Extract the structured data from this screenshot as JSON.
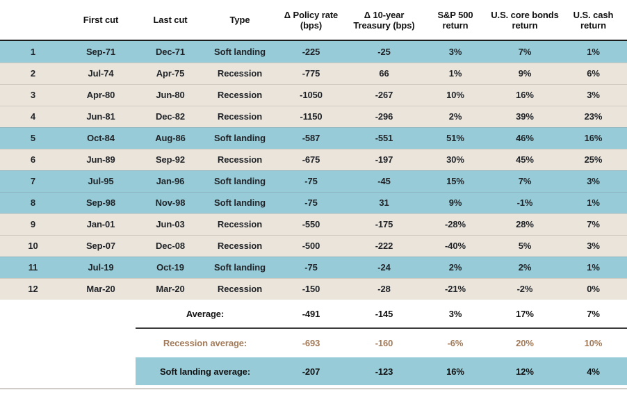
{
  "colors": {
    "soft_landing_row": "#97CBD8",
    "recession_row": "#EBE4DB",
    "recession_summary_text": "#A27A58",
    "body_text": "#1F2327",
    "header_rule": "#1C1C1C",
    "summary_rule": "#3B3B3B",
    "bottom_rule": "#D0CDC8"
  },
  "chart_data": {
    "type": "table",
    "columns": [
      "",
      "First cut",
      "Last cut",
      "Type",
      "Δ Policy rate (bps)",
      "Δ 10-year Treasury (bps)",
      "S&P 500 return",
      "U.S. core bonds return",
      "U.S. cash return"
    ],
    "header_lines": [
      [
        ""
      ],
      [
        "First cut"
      ],
      [
        "Last cut"
      ],
      [
        "Type"
      ],
      [
        "Δ Policy rate",
        "(bps)"
      ],
      [
        "Δ 10-year",
        "Treasury (bps)"
      ],
      [
        "S&P 500",
        "return"
      ],
      [
        "U.S. core bonds",
        "return"
      ],
      [
        "U.S. cash",
        "return"
      ]
    ],
    "rows": [
      [
        "1",
        "Sep-71",
        "Dec-71",
        "Soft landing",
        "-225",
        "-25",
        "3%",
        "7%",
        "1%"
      ],
      [
        "2",
        "Jul-74",
        "Apr-75",
        "Recession",
        "-775",
        "66",
        "1%",
        "9%",
        "6%"
      ],
      [
        "3",
        "Apr-80",
        "Jun-80",
        "Recession",
        "-1050",
        "-267",
        "10%",
        "16%",
        "3%"
      ],
      [
        "4",
        "Jun-81",
        "Dec-82",
        "Recession",
        "-1150",
        "-296",
        "2%",
        "39%",
        "23%"
      ],
      [
        "5",
        "Oct-84",
        "Aug-86",
        "Soft landing",
        "-587",
        "-551",
        "51%",
        "46%",
        "16%"
      ],
      [
        "6",
        "Jun-89",
        "Sep-92",
        "Recession",
        "-675",
        "-197",
        "30%",
        "45%",
        "25%"
      ],
      [
        "7",
        "Jul-95",
        "Jan-96",
        "Soft landing",
        "-75",
        "-45",
        "15%",
        "7%",
        "3%"
      ],
      [
        "8",
        "Sep-98",
        "Nov-98",
        "Soft landing",
        "-75",
        "31",
        "9%",
        "-1%",
        "1%"
      ],
      [
        "9",
        "Jan-01",
        "Jun-03",
        "Recession",
        "-550",
        "-175",
        "-28%",
        "28%",
        "7%"
      ],
      [
        "10",
        "Sep-07",
        "Dec-08",
        "Recession",
        "-500",
        "-222",
        "-40%",
        "5%",
        "3%"
      ],
      [
        "11",
        "Jul-19",
        "Oct-19",
        "Soft landing",
        "-75",
        "-24",
        "2%",
        "2%",
        "1%"
      ],
      [
        "12",
        "Mar-20",
        "Mar-20",
        "Recession",
        "-150",
        "-28",
        "-21%",
        "-2%",
        "0%"
      ]
    ],
    "summary": [
      {
        "label": "Average:",
        "style": "average",
        "values": [
          "-491",
          "-145",
          "3%",
          "17%",
          "7%"
        ]
      },
      {
        "label": "Recession average:",
        "style": "recession-avg",
        "values": [
          "-693",
          "-160",
          "-6%",
          "20%",
          "10%"
        ]
      },
      {
        "label": "Soft landing average:",
        "style": "soft-avg",
        "values": [
          "-207",
          "-123",
          "16%",
          "12%",
          "4%"
        ]
      }
    ]
  }
}
